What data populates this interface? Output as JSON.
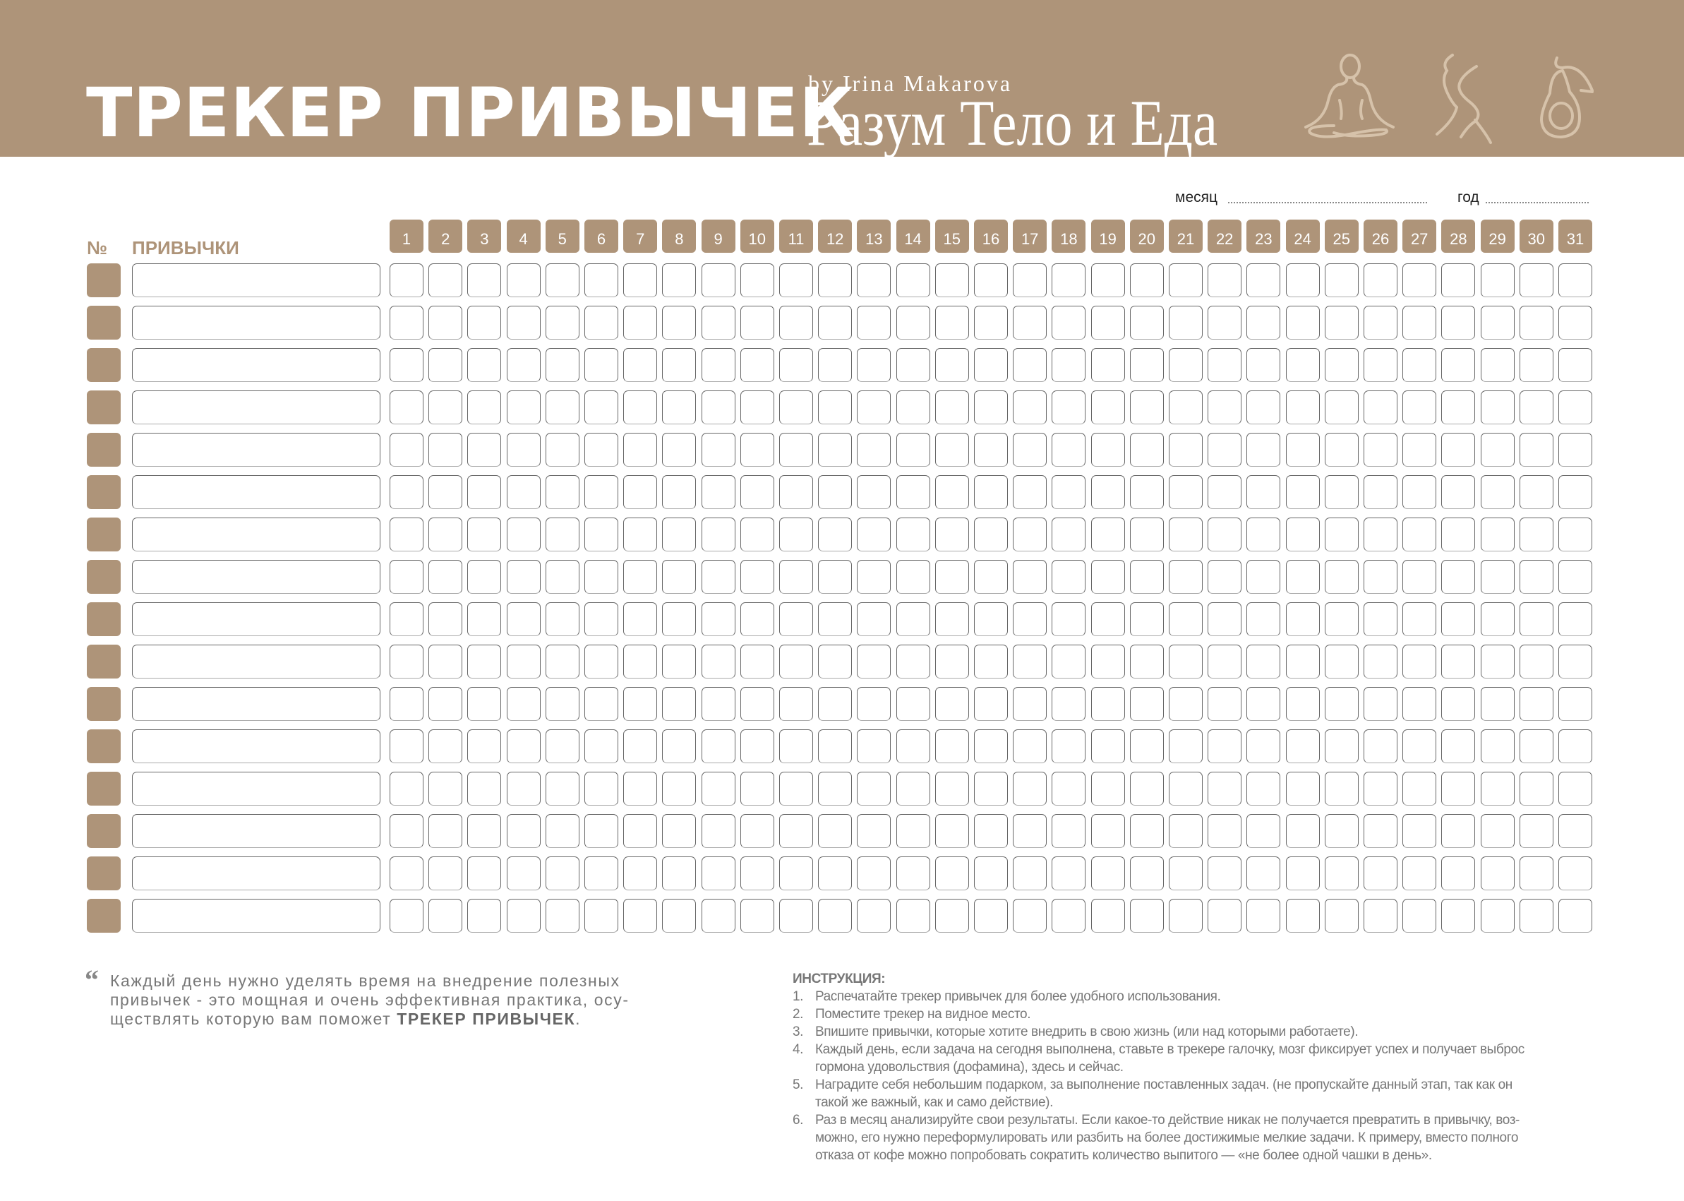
{
  "header": {
    "title": "ТРЕКЕР ПРИВЫЧЕК",
    "byline": "by Irina Makarova",
    "brand": "Разум Тело и Еда",
    "icons": [
      "meditation-figure-icon",
      "body-silhouette-icon",
      "avocado-icon"
    ],
    "color": "#ae9479"
  },
  "fields": {
    "month_label": "месяц",
    "year_label": "год"
  },
  "table": {
    "number_header": "№",
    "habits_header": "ПРИВЫЧКИ",
    "days": [
      "1",
      "2",
      "3",
      "4",
      "5",
      "6",
      "7",
      "8",
      "9",
      "10",
      "11",
      "12",
      "13",
      "14",
      "15",
      "16",
      "17",
      "18",
      "19",
      "20",
      "21",
      "22",
      "23",
      "24",
      "25",
      "26",
      "27",
      "28",
      "29",
      "30",
      "31"
    ],
    "row_count": 16
  },
  "quote": {
    "line1": "Каждый день нужно уделять время на внедрение полезных",
    "line2": "привычек - это мощная и очень эффективная практика, осу-",
    "line3": "ществлять которую вам поможет ",
    "bold": "ТРЕКЕР ПРИВЫЧЕК",
    "end": "."
  },
  "instructions": {
    "heading": "ИНСТРУКЦИЯ:",
    "items": [
      {
        "n": "1.",
        "lines": [
          "Распечатайте трекер привычек для более удобного использования."
        ]
      },
      {
        "n": "2.",
        "lines": [
          "Поместите трекер на видное место."
        ]
      },
      {
        "n": "3.",
        "lines": [
          "Впишите привычки, которые хотите внедрить в свою жизнь (или над которыми работаете)."
        ]
      },
      {
        "n": "4.",
        "lines": [
          "Каждый день, если задача на сегодня выполнена, ставьте в трекере галочку, мозг фиксирует успех и получает выброс",
          "гормона удовольствия (дофамина), здесь и сейчас."
        ]
      },
      {
        "n": "5.",
        "lines": [
          "Наградите себя небольшим подарком, за выполнение поставленных задач. (не пропускайте данный этап, так как он",
          "такой же важный, как и само действие)."
        ]
      },
      {
        "n": "6.",
        "lines": [
          "Раз в месяц анализируйте свои результаты. Если какое-то действие никак не получается превратить в привычку, воз-",
          "можно, его нужно переформулировать или разбить на более достижимые мелкие задачи. К примеру, вместо полного",
          "отказа от кофе можно попробовать сократить количество выпитого — «не более одной чашки в день»."
        ]
      }
    ]
  }
}
